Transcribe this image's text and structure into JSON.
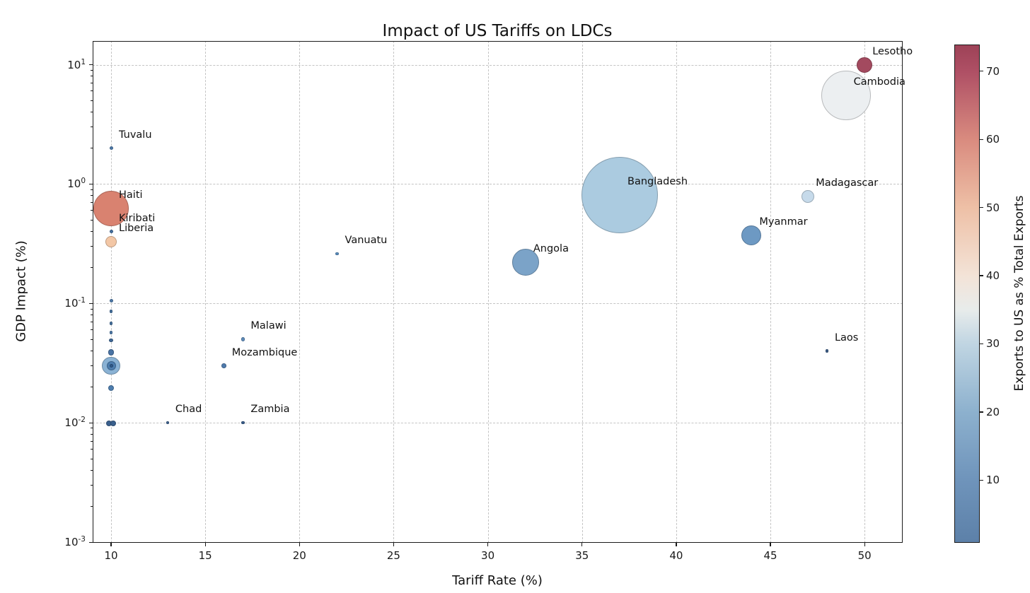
{
  "chart_data": {
    "type": "scatter",
    "title": "Impact of US Tariffs on LDCs",
    "xlabel": "Tariff Rate (%)",
    "ylabel": "GDP Impact (%)",
    "x_ticks": [
      10,
      15,
      20,
      25,
      30,
      35,
      40,
      45,
      50
    ],
    "y_tick_exponents": [
      1,
      0,
      -1,
      -2,
      -3
    ],
    "xlim": [
      9.0,
      52.0
    ],
    "ylim": [
      0.001,
      16
    ],
    "y_scale": "log",
    "grid": true,
    "grid_style": "dashed",
    "legend_position": "none",
    "size_encodes": "bubble size (relative)",
    "colorbar": {
      "label": "Exports to US as % Total Exports",
      "ticks": [
        10,
        20,
        30,
        40,
        50,
        60,
        70
      ],
      "vmin": 1,
      "vmax": 74,
      "gradient_stops": [
        {
          "v": 1,
          "c": "#5d81a9"
        },
        {
          "v": 10,
          "c": "#6f94bb"
        },
        {
          "v": 20,
          "c": "#8db1ce"
        },
        {
          "v": 30,
          "c": "#c0d5e2"
        },
        {
          "v": 35,
          "c": "#e8eceb"
        },
        {
          "v": 40,
          "c": "#f3e3d7"
        },
        {
          "v": 50,
          "c": "#eec0a6"
        },
        {
          "v": 60,
          "c": "#d98b7f"
        },
        {
          "v": 70,
          "c": "#af5065"
        },
        {
          "v": 74,
          "c": "#9d4257"
        }
      ]
    },
    "points": [
      {
        "name": "Bangladesh",
        "x": 37,
        "y": 0.81,
        "r": 54,
        "color": "#abcbe0",
        "exports_pct_est": 21
      },
      {
        "name": "Cambodia",
        "x": 49,
        "y": 5.5,
        "r": 35,
        "color": "#eceff1",
        "exports_pct_est": 34
      },
      {
        "name": "Haiti",
        "x": 10,
        "y": 0.62,
        "r": 25,
        "color": "#d98270",
        "exports_pct_est": 58
      },
      {
        "name": "Angola",
        "x": 32,
        "y": 0.22,
        "r": 19,
        "color": "#7ba3c8",
        "exports_pct_est": 16
      },
      {
        "name": "Myanmar",
        "x": 44,
        "y": 0.37,
        "r": 14,
        "color": "#6d99c3",
        "exports_pct_est": 13
      },
      {
        "name": "Lesotho",
        "x": 50,
        "y": 10,
        "r": 11,
        "color": "#a34a5f",
        "exports_pct_est": 72
      },
      {
        "name": "Madagascar",
        "x": 47,
        "y": 0.79,
        "r": 9,
        "color": "#c6daea",
        "exports_pct_est": 27
      },
      {
        "name": "Liberia",
        "x": 10,
        "y": 0.33,
        "r": 8,
        "color": "#f3c7a6",
        "exports_pct_est": 45
      },
      {
        "name": "Tuvalu",
        "x": 10,
        "y": 2.0,
        "r": 2.5,
        "color": "#4d7aa9",
        "exports_pct_est": 9
      },
      {
        "name": "Kiribati",
        "x": 10,
        "y": 0.4,
        "r": 2.5,
        "color": "#446f9f",
        "exports_pct_est": 7
      },
      {
        "name": "Vanuatu",
        "x": 22,
        "y": 0.26,
        "r": 2.2,
        "color": "#5b8fc0",
        "exports_pct_est": 14
      },
      {
        "name": "Malawi",
        "x": 17,
        "y": 0.05,
        "r": 2.7,
        "color": "#5f8cba",
        "exports_pct_est": 12
      },
      {
        "name": "Mozambique",
        "x": 16,
        "y": 0.03,
        "r": 3.3,
        "color": "#4f7bad",
        "exports_pct_est": 10
      },
      {
        "name": "Laos",
        "x": 48,
        "y": 0.04,
        "r": 2.2,
        "color": "#3c5e88",
        "exports_pct_est": 3
      },
      {
        "name": "Chad",
        "x": 13,
        "y": 0.01,
        "r": 1.8,
        "color": "#3f6390",
        "exports_pct_est": 5
      },
      {
        "name": "Zambia",
        "x": 17,
        "y": 0.01,
        "r": 2.2,
        "color": "#3a5f8d",
        "exports_pct_est": 4
      },
      {
        "name": null,
        "x": 10,
        "y": 0.106,
        "r": 2.5,
        "color": "#4d7aa9",
        "exports_pct_est": 8
      },
      {
        "name": null,
        "x": 10,
        "y": 0.086,
        "r": 2.3,
        "color": "#44719f",
        "exports_pct_est": 6
      },
      {
        "name": null,
        "x": 10,
        "y": 0.068,
        "r": 2.2,
        "color": "#44719f",
        "exports_pct_est": 6
      },
      {
        "name": null,
        "x": 10,
        "y": 0.057,
        "r": 2.3,
        "color": "#4d7aa9",
        "exports_pct_est": 8
      },
      {
        "name": null,
        "x": 10,
        "y": 0.049,
        "r": 2.8,
        "color": "#3f6896",
        "exports_pct_est": 5
      },
      {
        "name": null,
        "x": 10,
        "y": 0.039,
        "r": 4.2,
        "color": "#4973a4",
        "exports_pct_est": 7
      },
      {
        "name": null,
        "x": 10,
        "y": 0.03,
        "r": 12.7,
        "color": "#8ab2d4",
        "exports_pct_est": 17
      },
      {
        "name": null,
        "x": 10,
        "y": 0.03,
        "r": 6.5,
        "color": "#4d7dae",
        "exports_pct_est": 8
      },
      {
        "name": null,
        "x": 10,
        "y": 0.03,
        "r": 2.5,
        "color": "#2f5a8a",
        "exports_pct_est": 2
      },
      {
        "name": null,
        "x": 10,
        "y": 0.0196,
        "r": 4.2,
        "color": "#4d7dae",
        "exports_pct_est": 8
      },
      {
        "name": null,
        "x": 9.89,
        "y": 0.0099,
        "r": 4.0,
        "color": "#3a608e",
        "exports_pct_est": 4
      },
      {
        "name": null,
        "x": 10.11,
        "y": 0.0099,
        "r": 4.0,
        "color": "#3a608e",
        "exports_pct_est": 4
      }
    ]
  }
}
